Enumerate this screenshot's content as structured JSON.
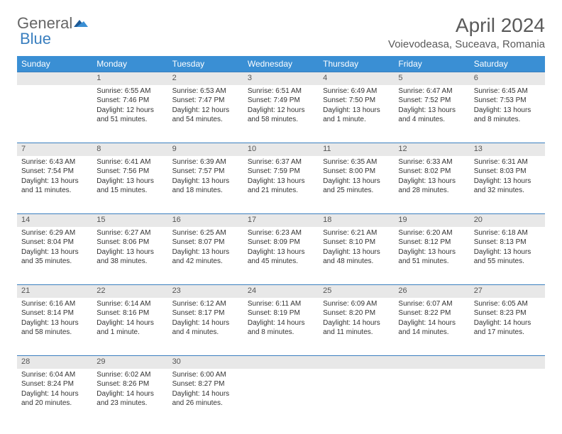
{
  "brand": {
    "part1": "General",
    "part2": "Blue"
  },
  "title": "April 2024",
  "location": "Voievodeasa, Suceava, Romania",
  "colors": {
    "header_bg": "#3a8fd4",
    "accent": "#3a7fbf",
    "daynum_bg": "#e8e8e8",
    "text": "#333333"
  },
  "weekdays": [
    "Sunday",
    "Monday",
    "Tuesday",
    "Wednesday",
    "Thursday",
    "Friday",
    "Saturday"
  ],
  "weeks": [
    {
      "nums": [
        "",
        "1",
        "2",
        "3",
        "4",
        "5",
        "6"
      ],
      "cells": [
        null,
        {
          "sunrise": "Sunrise: 6:55 AM",
          "sunset": "Sunset: 7:46 PM",
          "day1": "Daylight: 12 hours",
          "day2": "and 51 minutes."
        },
        {
          "sunrise": "Sunrise: 6:53 AM",
          "sunset": "Sunset: 7:47 PM",
          "day1": "Daylight: 12 hours",
          "day2": "and 54 minutes."
        },
        {
          "sunrise": "Sunrise: 6:51 AM",
          "sunset": "Sunset: 7:49 PM",
          "day1": "Daylight: 12 hours",
          "day2": "and 58 minutes."
        },
        {
          "sunrise": "Sunrise: 6:49 AM",
          "sunset": "Sunset: 7:50 PM",
          "day1": "Daylight: 13 hours",
          "day2": "and 1 minute."
        },
        {
          "sunrise": "Sunrise: 6:47 AM",
          "sunset": "Sunset: 7:52 PM",
          "day1": "Daylight: 13 hours",
          "day2": "and 4 minutes."
        },
        {
          "sunrise": "Sunrise: 6:45 AM",
          "sunset": "Sunset: 7:53 PM",
          "day1": "Daylight: 13 hours",
          "day2": "and 8 minutes."
        }
      ]
    },
    {
      "nums": [
        "7",
        "8",
        "9",
        "10",
        "11",
        "12",
        "13"
      ],
      "cells": [
        {
          "sunrise": "Sunrise: 6:43 AM",
          "sunset": "Sunset: 7:54 PM",
          "day1": "Daylight: 13 hours",
          "day2": "and 11 minutes."
        },
        {
          "sunrise": "Sunrise: 6:41 AM",
          "sunset": "Sunset: 7:56 PM",
          "day1": "Daylight: 13 hours",
          "day2": "and 15 minutes."
        },
        {
          "sunrise": "Sunrise: 6:39 AM",
          "sunset": "Sunset: 7:57 PM",
          "day1": "Daylight: 13 hours",
          "day2": "and 18 minutes."
        },
        {
          "sunrise": "Sunrise: 6:37 AM",
          "sunset": "Sunset: 7:59 PM",
          "day1": "Daylight: 13 hours",
          "day2": "and 21 minutes."
        },
        {
          "sunrise": "Sunrise: 6:35 AM",
          "sunset": "Sunset: 8:00 PM",
          "day1": "Daylight: 13 hours",
          "day2": "and 25 minutes."
        },
        {
          "sunrise": "Sunrise: 6:33 AM",
          "sunset": "Sunset: 8:02 PM",
          "day1": "Daylight: 13 hours",
          "day2": "and 28 minutes."
        },
        {
          "sunrise": "Sunrise: 6:31 AM",
          "sunset": "Sunset: 8:03 PM",
          "day1": "Daylight: 13 hours",
          "day2": "and 32 minutes."
        }
      ]
    },
    {
      "nums": [
        "14",
        "15",
        "16",
        "17",
        "18",
        "19",
        "20"
      ],
      "cells": [
        {
          "sunrise": "Sunrise: 6:29 AM",
          "sunset": "Sunset: 8:04 PM",
          "day1": "Daylight: 13 hours",
          "day2": "and 35 minutes."
        },
        {
          "sunrise": "Sunrise: 6:27 AM",
          "sunset": "Sunset: 8:06 PM",
          "day1": "Daylight: 13 hours",
          "day2": "and 38 minutes."
        },
        {
          "sunrise": "Sunrise: 6:25 AM",
          "sunset": "Sunset: 8:07 PM",
          "day1": "Daylight: 13 hours",
          "day2": "and 42 minutes."
        },
        {
          "sunrise": "Sunrise: 6:23 AM",
          "sunset": "Sunset: 8:09 PM",
          "day1": "Daylight: 13 hours",
          "day2": "and 45 minutes."
        },
        {
          "sunrise": "Sunrise: 6:21 AM",
          "sunset": "Sunset: 8:10 PM",
          "day1": "Daylight: 13 hours",
          "day2": "and 48 minutes."
        },
        {
          "sunrise": "Sunrise: 6:20 AM",
          "sunset": "Sunset: 8:12 PM",
          "day1": "Daylight: 13 hours",
          "day2": "and 51 minutes."
        },
        {
          "sunrise": "Sunrise: 6:18 AM",
          "sunset": "Sunset: 8:13 PM",
          "day1": "Daylight: 13 hours",
          "day2": "and 55 minutes."
        }
      ]
    },
    {
      "nums": [
        "21",
        "22",
        "23",
        "24",
        "25",
        "26",
        "27"
      ],
      "cells": [
        {
          "sunrise": "Sunrise: 6:16 AM",
          "sunset": "Sunset: 8:14 PM",
          "day1": "Daylight: 13 hours",
          "day2": "and 58 minutes."
        },
        {
          "sunrise": "Sunrise: 6:14 AM",
          "sunset": "Sunset: 8:16 PM",
          "day1": "Daylight: 14 hours",
          "day2": "and 1 minute."
        },
        {
          "sunrise": "Sunrise: 6:12 AM",
          "sunset": "Sunset: 8:17 PM",
          "day1": "Daylight: 14 hours",
          "day2": "and 4 minutes."
        },
        {
          "sunrise": "Sunrise: 6:11 AM",
          "sunset": "Sunset: 8:19 PM",
          "day1": "Daylight: 14 hours",
          "day2": "and 8 minutes."
        },
        {
          "sunrise": "Sunrise: 6:09 AM",
          "sunset": "Sunset: 8:20 PM",
          "day1": "Daylight: 14 hours",
          "day2": "and 11 minutes."
        },
        {
          "sunrise": "Sunrise: 6:07 AM",
          "sunset": "Sunset: 8:22 PM",
          "day1": "Daylight: 14 hours",
          "day2": "and 14 minutes."
        },
        {
          "sunrise": "Sunrise: 6:05 AM",
          "sunset": "Sunset: 8:23 PM",
          "day1": "Daylight: 14 hours",
          "day2": "and 17 minutes."
        }
      ]
    },
    {
      "nums": [
        "28",
        "29",
        "30",
        "",
        "",
        "",
        ""
      ],
      "cells": [
        {
          "sunrise": "Sunrise: 6:04 AM",
          "sunset": "Sunset: 8:24 PM",
          "day1": "Daylight: 14 hours",
          "day2": "and 20 minutes."
        },
        {
          "sunrise": "Sunrise: 6:02 AM",
          "sunset": "Sunset: 8:26 PM",
          "day1": "Daylight: 14 hours",
          "day2": "and 23 minutes."
        },
        {
          "sunrise": "Sunrise: 6:00 AM",
          "sunset": "Sunset: 8:27 PM",
          "day1": "Daylight: 14 hours",
          "day2": "and 26 minutes."
        },
        null,
        null,
        null,
        null
      ]
    }
  ]
}
